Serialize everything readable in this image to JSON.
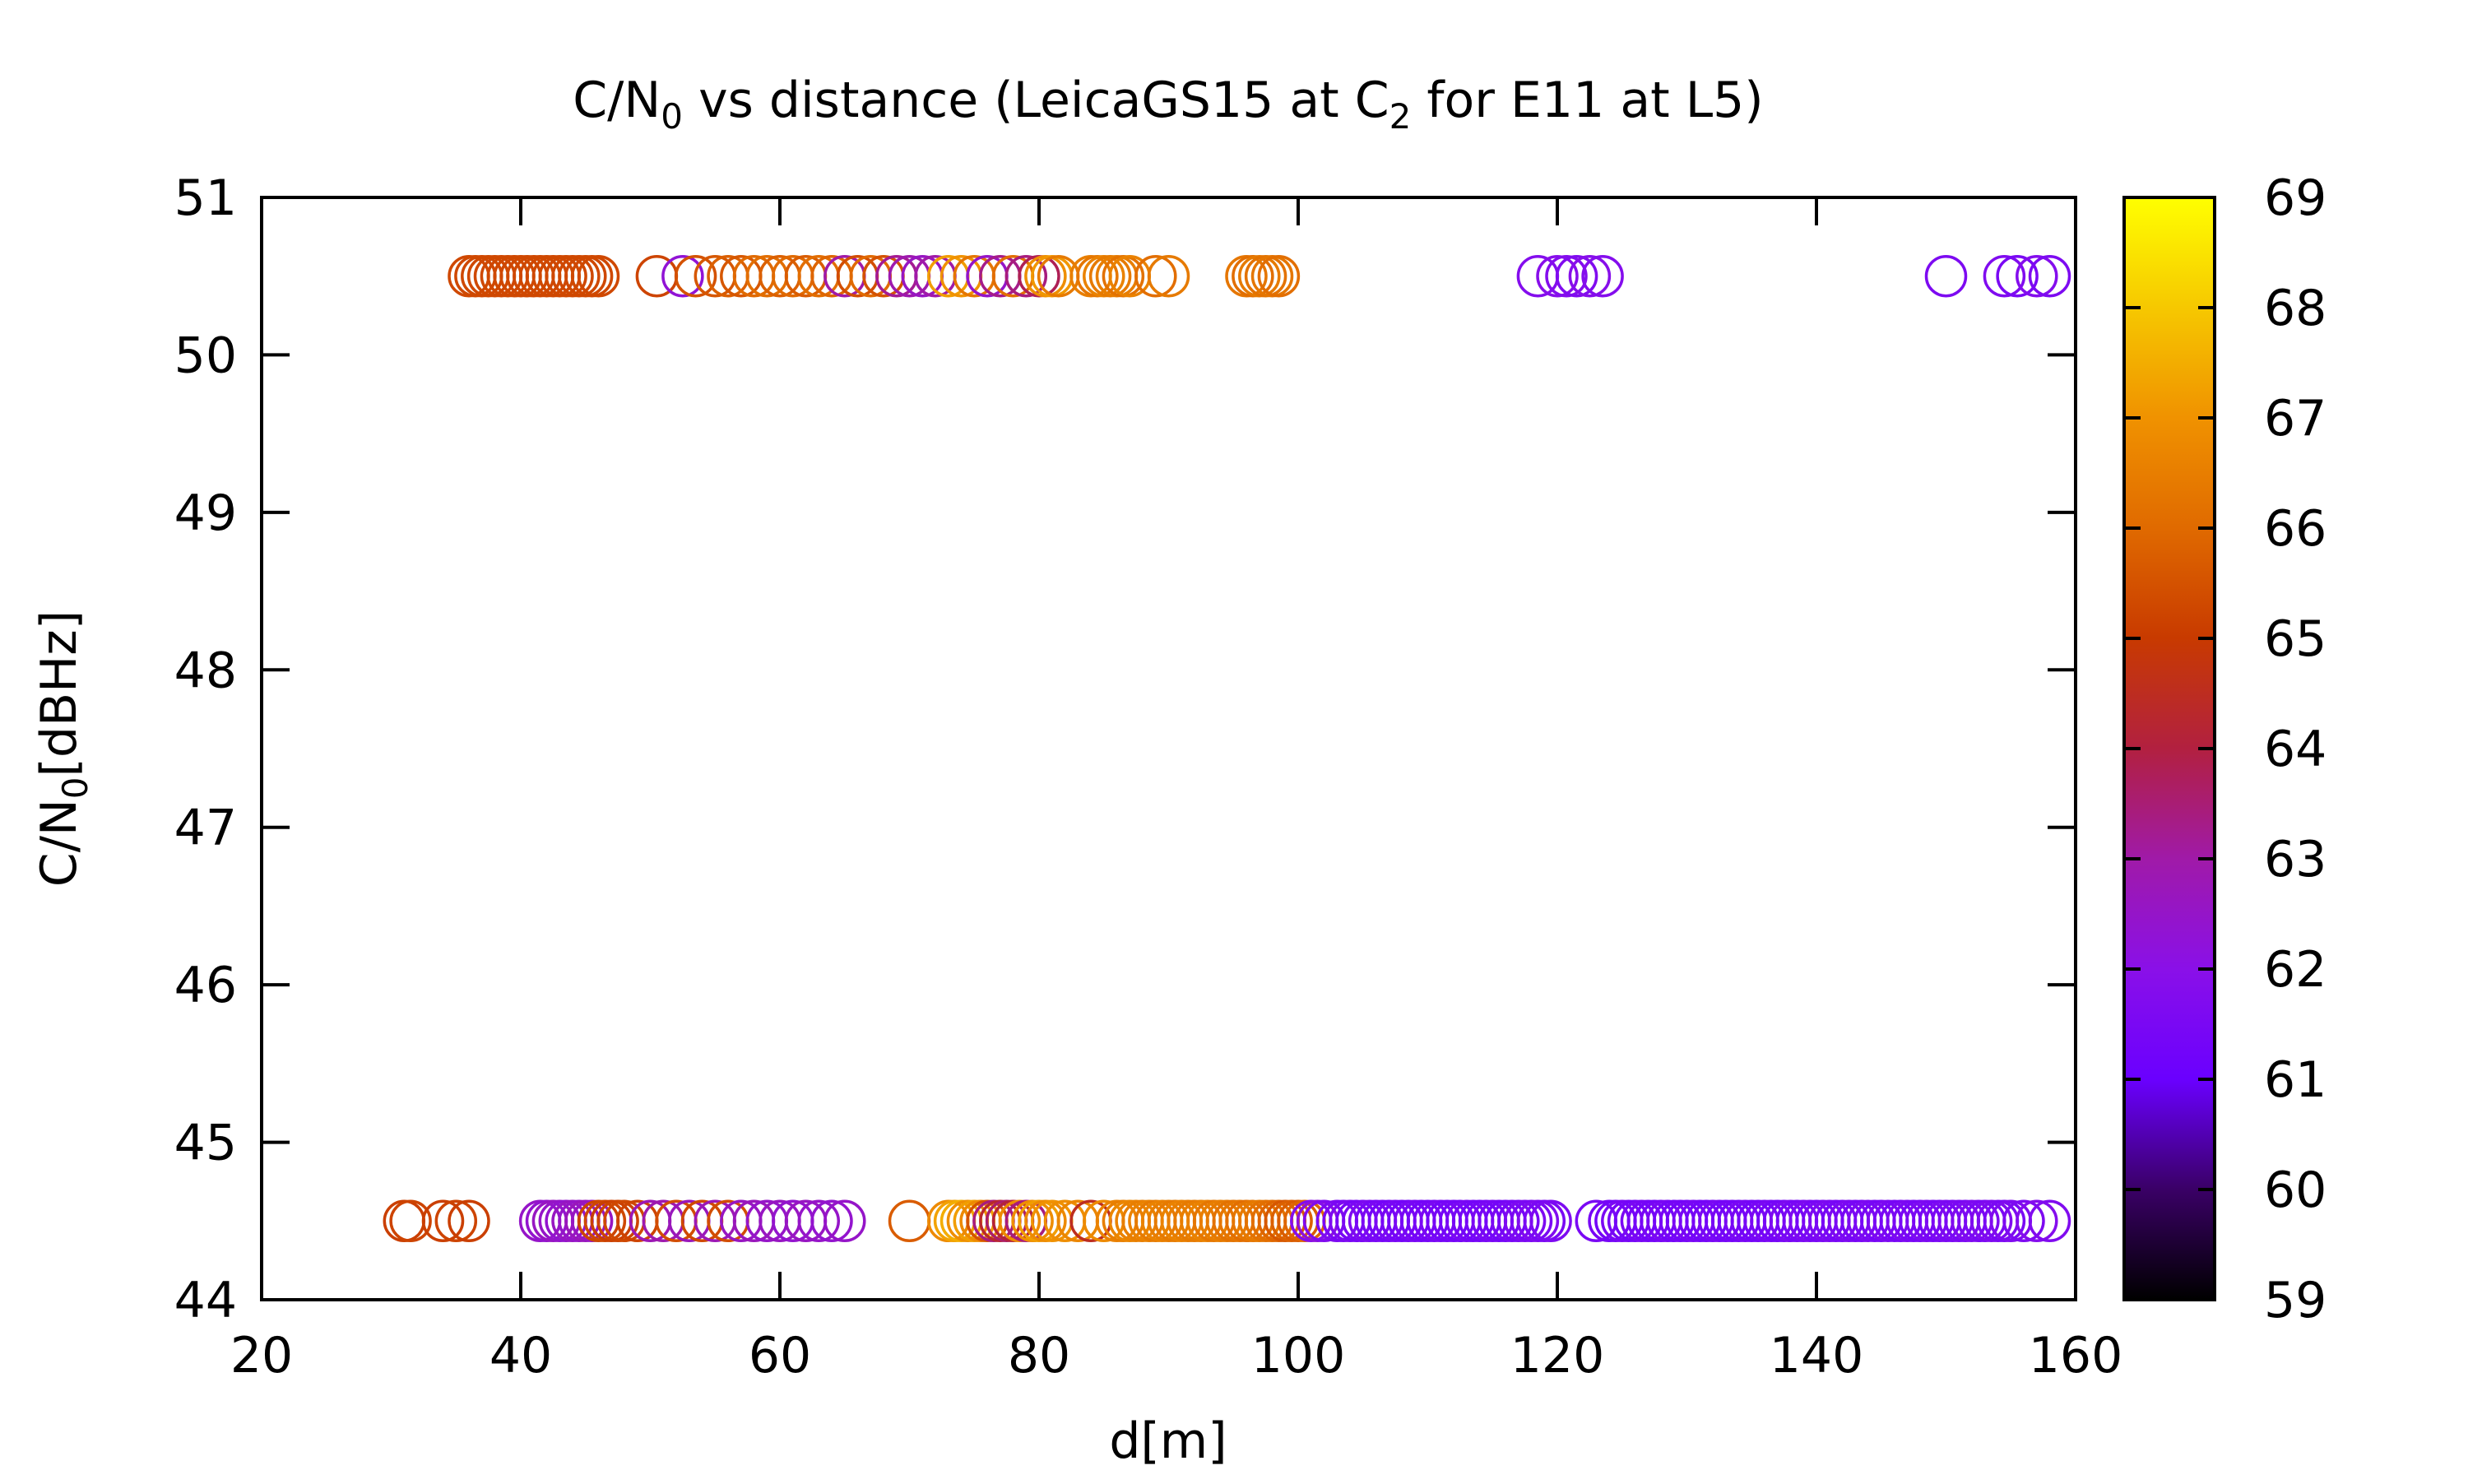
{
  "chart_data": {
    "type": "scatter",
    "title_parts": {
      "a": "C/N",
      "a_sub": "0",
      "b": " vs distance (LeicaGS15 at C",
      "b_sub": "2",
      "c": " for E11 at L5)"
    },
    "xlabel": "d[m]",
    "ylabel_parts": {
      "a": "C/N",
      "a_sub": "0",
      "b": "[dBHz]"
    },
    "xlim": [
      20,
      160
    ],
    "ylim": [
      44,
      51
    ],
    "xticks": [
      "20",
      "40",
      "60",
      "80",
      "100",
      "120",
      "140",
      "160"
    ],
    "yticks": [
      "44",
      "45",
      "46",
      "47",
      "48",
      "49",
      "50",
      "51"
    ],
    "colorbar": {
      "range": [
        59,
        69
      ],
      "ticks": [
        "59",
        "60",
        "61",
        "62",
        "63",
        "64",
        "65",
        "66",
        "67",
        "68",
        "69"
      ],
      "palette": [
        "#000000",
        "#3a0066",
        "#6a00ff",
        "#8a10e8",
        "#a01aa8",
        "#b22040",
        "#c83a00",
        "#e06a00",
        "#f09200",
        "#f6c800",
        "#ffff00"
      ]
    },
    "grid": false,
    "series": [
      {
        "y": 50.5,
        "points": [
          [
            36,
            65.3
          ],
          [
            36.5,
            65.3
          ],
          [
            37,
            65.3
          ],
          [
            37.5,
            65.3
          ],
          [
            38,
            65.3
          ],
          [
            38.5,
            65.3
          ],
          [
            39,
            65.3
          ],
          [
            39.5,
            65.3
          ],
          [
            40,
            65.3
          ],
          [
            40.5,
            65.3
          ],
          [
            41,
            65.3
          ],
          [
            41.5,
            65.3
          ],
          [
            42,
            65.3
          ],
          [
            42.5,
            65.3
          ],
          [
            43,
            65.3
          ],
          [
            43.5,
            65.3
          ],
          [
            44,
            65.3
          ],
          [
            44.5,
            65.3
          ],
          [
            45,
            65.3
          ],
          [
            45.5,
            65.3
          ],
          [
            46,
            65.3
          ],
          [
            50.5,
            65.2
          ],
          [
            52.5,
            62.3
          ],
          [
            53.5,
            65.5
          ],
          [
            55,
            65.6
          ],
          [
            56,
            65.8
          ],
          [
            57,
            65.6
          ],
          [
            58,
            66
          ],
          [
            59,
            66.1
          ],
          [
            60,
            65.8
          ],
          [
            61,
            66
          ],
          [
            62,
            65.7
          ],
          [
            63,
            66.1
          ],
          [
            64,
            65.9
          ],
          [
            65,
            63
          ],
          [
            66,
            65.4
          ],
          [
            67,
            66
          ],
          [
            68,
            65.5
          ],
          [
            69,
            63.2
          ],
          [
            70,
            62.9
          ],
          [
            71,
            62.6
          ],
          [
            72,
            63
          ],
          [
            73,
            67.2
          ],
          [
            74,
            67
          ],
          [
            75,
            66.3
          ],
          [
            76,
            62.5
          ],
          [
            77,
            63.3
          ],
          [
            78,
            66.1
          ],
          [
            79,
            63.4
          ],
          [
            80,
            63.8
          ],
          [
            80.5,
            66.9
          ],
          [
            81,
            67.1
          ],
          [
            81.5,
            66.4
          ],
          [
            84,
            66.5
          ],
          [
            84.5,
            66.3
          ],
          [
            85,
            66.6
          ],
          [
            85.5,
            66.4
          ],
          [
            86,
            66.5
          ],
          [
            86.5,
            66.2
          ],
          [
            87,
            66.6
          ],
          [
            89,
            66.1
          ],
          [
            90,
            66.4
          ],
          [
            96,
            66.3
          ],
          [
            96.5,
            66.1
          ],
          [
            97,
            66.4
          ],
          [
            97.5,
            66.2
          ],
          [
            98,
            66.3
          ],
          [
            98.5,
            66.1
          ],
          [
            118.5,
            61.8
          ],
          [
            120,
            61.9
          ],
          [
            120.7,
            61.8
          ],
          [
            121.5,
            61.7
          ],
          [
            122.5,
            61.9
          ],
          [
            123.5,
            61.8
          ],
          [
            150,
            61.6
          ],
          [
            154.5,
            61.7
          ],
          [
            155.5,
            61.5
          ],
          [
            157,
            61.8
          ],
          [
            158,
            61.6
          ]
        ]
      },
      {
        "y": 44.5,
        "points": [
          [
            31,
            65.1
          ],
          [
            31.5,
            65.2
          ],
          [
            34,
            65.1
          ],
          [
            35,
            65.2
          ],
          [
            36,
            65.1
          ],
          [
            41.5,
            62.5
          ],
          [
            42,
            62.4
          ],
          [
            42.5,
            62.6
          ],
          [
            43,
            62.5
          ],
          [
            43.5,
            62.4
          ],
          [
            44,
            62.6
          ],
          [
            44.5,
            62.5
          ],
          [
            45,
            62.7
          ],
          [
            45.5,
            62.6
          ],
          [
            46,
            65.2
          ],
          [
            46.5,
            65.3
          ],
          [
            47,
            65.1
          ],
          [
            47.5,
            65.2
          ],
          [
            48,
            65.3
          ],
          [
            49,
            65.2
          ],
          [
            50,
            62.8
          ],
          [
            51,
            62.9
          ],
          [
            52,
            65.4
          ],
          [
            53,
            62.7
          ],
          [
            54,
            65.3
          ],
          [
            55,
            62.8
          ],
          [
            56,
            65.4
          ],
          [
            57,
            62.6
          ],
          [
            58,
            62.7
          ],
          [
            59,
            62.5
          ],
          [
            60,
            62.6
          ],
          [
            61,
            62.4
          ],
          [
            62,
            62.6
          ],
          [
            63,
            62.5
          ],
          [
            64,
            62.4
          ],
          [
            65,
            62.5
          ],
          [
            70,
            65.7
          ],
          [
            73,
            66.8
          ],
          [
            73.5,
            67.3
          ],
          [
            74,
            67.5
          ],
          [
            74.5,
            66.9
          ],
          [
            75,
            67.2
          ],
          [
            75.5,
            66.8
          ],
          [
            76,
            65.5
          ],
          [
            76.5,
            63.4
          ],
          [
            77,
            64.3
          ],
          [
            77.5,
            63.6
          ],
          [
            78,
            64.1
          ],
          [
            78.5,
            66.8
          ],
          [
            79,
            63.4
          ],
          [
            79.5,
            66.9
          ],
          [
            80,
            67.2
          ],
          [
            80.5,
            66.8
          ],
          [
            81,
            67
          ],
          [
            82,
            66.9
          ],
          [
            83,
            66.7
          ],
          [
            84,
            64.5
          ],
          [
            85,
            66.8
          ],
          [
            86,
            66.6
          ],
          [
            86.5,
            66.5
          ],
          [
            87,
            66.7
          ],
          [
            87.5,
            66.6
          ],
          [
            88,
            66.5
          ],
          [
            88.5,
            66.6
          ],
          [
            89,
            66.4
          ],
          [
            89.5,
            66.6
          ],
          [
            90,
            66.5
          ],
          [
            90.5,
            66.4
          ],
          [
            91,
            66.6
          ],
          [
            91.5,
            66.5
          ],
          [
            92,
            66.4
          ],
          [
            92.5,
            66.5
          ],
          [
            93,
            66.6
          ],
          [
            93.5,
            66.3
          ],
          [
            94,
            66.5
          ],
          [
            94.5,
            66.4
          ],
          [
            95,
            66.2
          ],
          [
            95.5,
            66.3
          ],
          [
            96,
            66.1
          ],
          [
            96.5,
            66.3
          ],
          [
            97,
            66.4
          ],
          [
            97.5,
            66.2
          ],
          [
            98,
            66.1
          ],
          [
            98.5,
            65.9
          ],
          [
            99,
            65.6
          ],
          [
            99.5,
            65.8
          ],
          [
            100,
            65.7
          ],
          [
            100.5,
            65.9
          ],
          [
            101,
            61.8
          ],
          [
            101.5,
            62.2
          ],
          [
            102,
            61.7
          ],
          [
            103,
            61.6
          ],
          [
            103.5,
            61.5
          ],
          [
            104,
            61.6
          ],
          [
            104.5,
            61.4
          ],
          [
            105,
            61.5
          ],
          [
            105.5,
            61.6
          ],
          [
            106,
            61.4
          ],
          [
            106.5,
            61.5
          ],
          [
            107,
            61.3
          ],
          [
            107.5,
            61.5
          ],
          [
            108,
            61.4
          ],
          [
            108.5,
            61.3
          ],
          [
            109,
            61.5
          ],
          [
            109.5,
            61.4
          ],
          [
            110,
            61.3
          ],
          [
            110.5,
            61.4
          ],
          [
            111,
            61.5
          ],
          [
            111.5,
            61.3
          ],
          [
            112,
            61.4
          ],
          [
            112.5,
            61.3
          ],
          [
            113,
            61.5
          ],
          [
            113.5,
            61.4
          ],
          [
            114,
            61.3
          ],
          [
            114.5,
            61.4
          ],
          [
            115,
            61.5
          ],
          [
            115.5,
            61.4
          ],
          [
            116,
            61.3
          ],
          [
            116.5,
            61.5
          ],
          [
            117,
            61.4
          ],
          [
            117.5,
            61.6
          ],
          [
            118,
            61.5
          ],
          [
            118.5,
            61.7
          ],
          [
            119,
            61.5
          ],
          [
            119.5,
            61.6
          ],
          [
            123,
            61.5
          ],
          [
            124,
            61.4
          ],
          [
            124.5,
            61.3
          ],
          [
            125,
            61.5
          ],
          [
            125.5,
            61.4
          ],
          [
            126,
            61.3
          ],
          [
            126.5,
            61.5
          ],
          [
            127,
            61.4
          ],
          [
            127.5,
            61.3
          ],
          [
            128,
            61.4
          ],
          [
            128.5,
            61.5
          ],
          [
            129,
            61.3
          ],
          [
            129.5,
            61.4
          ],
          [
            130,
            61.3
          ],
          [
            130.5,
            61.5
          ],
          [
            131,
            61.4
          ],
          [
            131.5,
            61.3
          ],
          [
            132,
            61.4
          ],
          [
            132.5,
            61.5
          ],
          [
            133,
            61.3
          ],
          [
            133.5,
            61.4
          ],
          [
            134,
            61.3
          ],
          [
            134.5,
            61.5
          ],
          [
            135,
            61.4
          ],
          [
            135.5,
            61.3
          ],
          [
            136,
            61.4
          ],
          [
            136.5,
            61.5
          ],
          [
            137,
            61.3
          ],
          [
            137.5,
            61.4
          ],
          [
            138,
            61.6
          ],
          [
            138.5,
            61.4
          ],
          [
            139,
            61.5
          ],
          [
            139.5,
            61.6
          ],
          [
            140,
            61.4
          ],
          [
            140.5,
            61.5
          ],
          [
            141,
            61.6
          ],
          [
            141.5,
            61.5
          ],
          [
            142,
            61.4
          ],
          [
            142.5,
            61.6
          ],
          [
            143,
            61.5
          ],
          [
            143.5,
            61.4
          ],
          [
            144,
            61.6
          ],
          [
            144.5,
            61.5
          ],
          [
            145,
            61.4
          ],
          [
            145.5,
            61.6
          ],
          [
            146,
            61.5
          ],
          [
            146.5,
            61.4
          ],
          [
            147,
            61.6
          ],
          [
            147.5,
            61.5
          ],
          [
            148,
            61.4
          ],
          [
            148.5,
            61.6
          ],
          [
            149,
            61.5
          ],
          [
            149.5,
            61.4
          ],
          [
            150,
            61.6
          ],
          [
            150.5,
            61.5
          ],
          [
            151,
            61.6
          ],
          [
            151.5,
            61.5
          ],
          [
            152,
            61.7
          ],
          [
            152.5,
            61.6
          ],
          [
            153,
            61.5
          ],
          [
            153.5,
            61.7
          ],
          [
            154,
            61.6
          ],
          [
            154.5,
            61.5
          ],
          [
            155,
            61.7
          ],
          [
            156,
            61.6
          ],
          [
            157,
            61.8
          ],
          [
            158,
            61.7
          ]
        ]
      }
    ]
  }
}
